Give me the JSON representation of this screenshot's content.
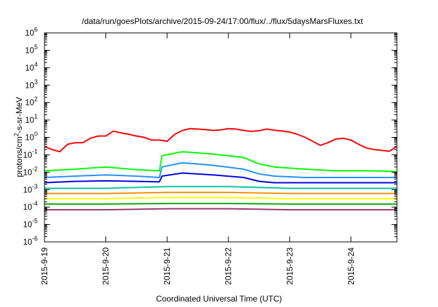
{
  "chart_data": {
    "type": "line",
    "title": "/data/run/goesPlots/archive/2015-09-24/17:00/flux/../flux/5daysMarsFluxes.txt",
    "xlabel": "Coordinated Universal Time (UTC)",
    "ylabel": {
      "pre": "protons/cm",
      "sup": "2",
      "post": "-s-sr-MeV"
    },
    "yscale": "log",
    "ylim": [
      1e-06,
      1000000.0
    ],
    "xlim": [
      "2015-09-19 00:00",
      "2015-09-24 18:00"
    ],
    "grid": false,
    "legend": "none",
    "y_ticks": [
      {
        "base": "10",
        "exp": "-6"
      },
      {
        "base": "10",
        "exp": "-5"
      },
      {
        "base": "10",
        "exp": "-4"
      },
      {
        "base": "10",
        "exp": "-3"
      },
      {
        "base": "10",
        "exp": "-2"
      },
      {
        "base": "10",
        "exp": "-1"
      },
      {
        "base": "10",
        "exp": "0"
      },
      {
        "base": "10",
        "exp": "1"
      },
      {
        "base": "10",
        "exp": "2"
      },
      {
        "base": "10",
        "exp": "3"
      },
      {
        "base": "10",
        "exp": "4"
      },
      {
        "base": "10",
        "exp": "5"
      },
      {
        "base": "10",
        "exp": "6"
      }
    ],
    "x_ticks": [
      "2015-9-19",
      "2015-9-20",
      "2015-9-21",
      "2015-9-22",
      "2015-9-23",
      "2015-9-24"
    ],
    "series": [
      {
        "color": "#ff0000",
        "x": [
          "2015-09-19 00:00",
          "2015-09-19 03:00",
          "2015-09-19 06:00",
          "2015-09-19 09:00",
          "2015-09-19 12:00",
          "2015-09-19 15:00",
          "2015-09-19 18:00",
          "2015-09-19 21:00",
          "2015-09-20 00:00",
          "2015-09-20 03:00",
          "2015-09-20 06:00",
          "2015-09-20 09:00",
          "2015-09-20 12:00",
          "2015-09-20 15:00",
          "2015-09-20 18:00",
          "2015-09-20 21:00",
          "2015-09-21 00:00",
          "2015-09-21 03:00",
          "2015-09-21 06:00",
          "2015-09-21 09:00",
          "2015-09-21 12:00",
          "2015-09-21 15:00",
          "2015-09-21 18:00",
          "2015-09-21 21:00",
          "2015-09-22 00:00",
          "2015-09-22 03:00",
          "2015-09-22 06:00",
          "2015-09-22 09:00",
          "2015-09-22 12:00",
          "2015-09-22 15:00",
          "2015-09-22 18:00",
          "2015-09-22 21:00",
          "2015-09-23 00:00",
          "2015-09-23 03:00",
          "2015-09-23 06:00",
          "2015-09-23 09:00",
          "2015-09-23 12:00",
          "2015-09-23 15:00",
          "2015-09-23 18:00",
          "2015-09-23 21:00",
          "2015-09-24 00:00",
          "2015-09-24 03:00",
          "2015-09-24 06:00",
          "2015-09-24 09:00",
          "2015-09-24 12:00",
          "2015-09-24 15:00",
          "2015-09-24 18:00"
        ],
        "y": [
          0.3,
          0.2,
          0.15,
          0.4,
          0.5,
          0.5,
          0.9,
          1.2,
          1.2,
          2.3,
          1.8,
          1.5,
          1.2,
          1.0,
          0.7,
          0.7,
          0.6,
          1.5,
          2.5,
          3.2,
          3.0,
          2.8,
          2.5,
          2.7,
          3.2,
          3.0,
          2.5,
          2.2,
          2.4,
          3.0,
          2.6,
          2.3,
          2.0,
          1.5,
          1.0,
          0.6,
          0.35,
          0.5,
          0.8,
          0.9,
          0.7,
          0.4,
          0.25,
          0.2,
          0.18,
          0.16,
          0.3
        ]
      },
      {
        "color": "#00ff00",
        "x": [
          "2015-09-19 00:00",
          "2015-09-19 12:00",
          "2015-09-20 00:00",
          "2015-09-20 12:00",
          "2015-09-20 21:00",
          "2015-09-20 22:00",
          "2015-09-21 06:00",
          "2015-09-21 18:00",
          "2015-09-22 06:00",
          "2015-09-22 12:00",
          "2015-09-22 18:00",
          "2015-09-23 06:00",
          "2015-09-23 18:00",
          "2015-09-24 06:00",
          "2015-09-24 18:00"
        ],
        "y": [
          0.012,
          0.015,
          0.02,
          0.014,
          0.012,
          0.09,
          0.15,
          0.11,
          0.07,
          0.03,
          0.02,
          0.015,
          0.012,
          0.012,
          0.011
        ]
      },
      {
        "color": "#1e90ff",
        "x": [
          "2015-09-19 00:00",
          "2015-09-19 12:00",
          "2015-09-20 00:00",
          "2015-09-20 12:00",
          "2015-09-20 21:00",
          "2015-09-20 22:00",
          "2015-09-21 06:00",
          "2015-09-21 18:00",
          "2015-09-22 06:00",
          "2015-09-22 12:00",
          "2015-09-22 18:00",
          "2015-09-23 06:00",
          "2015-09-23 18:00",
          "2015-09-24 06:00",
          "2015-09-24 18:00"
        ],
        "y": [
          0.005,
          0.006,
          0.007,
          0.006,
          0.005,
          0.02,
          0.035,
          0.025,
          0.015,
          0.008,
          0.006,
          0.005,
          0.005,
          0.005,
          0.005
        ]
      },
      {
        "color": "#0000dd",
        "x": [
          "2015-09-19 00:00",
          "2015-09-19 12:00",
          "2015-09-20 00:00",
          "2015-09-20 12:00",
          "2015-09-20 21:00",
          "2015-09-20 22:00",
          "2015-09-21 06:00",
          "2015-09-21 18:00",
          "2015-09-22 06:00",
          "2015-09-22 12:00",
          "2015-09-22 18:00",
          "2015-09-23 06:00",
          "2015-09-23 18:00",
          "2015-09-24 06:00",
          "2015-09-24 18:00"
        ],
        "y": [
          0.0025,
          0.003,
          0.0032,
          0.003,
          0.0028,
          0.006,
          0.009,
          0.007,
          0.005,
          0.003,
          0.0025,
          0.0025,
          0.0025,
          0.0025,
          0.0025
        ]
      },
      {
        "color": "#00c8a0",
        "x": [
          "2015-09-19 00:00",
          "2015-09-20 00:00",
          "2015-09-21 00:00",
          "2015-09-22 00:00",
          "2015-09-23 00:00",
          "2015-09-24 00:00",
          "2015-09-24 18:00"
        ],
        "y": [
          0.0012,
          0.0012,
          0.0015,
          0.0015,
          0.0012,
          0.0012,
          0.0012
        ]
      },
      {
        "color": "#ff8c00",
        "x": [
          "2015-09-19 00:00",
          "2015-09-20 00:00",
          "2015-09-21 00:00",
          "2015-09-22 00:00",
          "2015-09-23 00:00",
          "2015-09-24 00:00",
          "2015-09-24 18:00"
        ],
        "y": [
          0.0006,
          0.0006,
          0.0007,
          0.0007,
          0.0006,
          0.0006,
          0.0006
        ]
      },
      {
        "color": "#ffff00",
        "x": [
          "2015-09-19 00:00",
          "2015-09-20 00:00",
          "2015-09-21 00:00",
          "2015-09-22 00:00",
          "2015-09-23 00:00",
          "2015-09-24 00:00",
          "2015-09-24 18:00"
        ],
        "y": [
          0.0003,
          0.0003,
          0.00035,
          0.00035,
          0.0003,
          0.0003,
          0.0003
        ]
      },
      {
        "color": "#00aa00",
        "x": [
          "2015-09-19 00:00",
          "2015-09-20 00:00",
          "2015-09-21 00:00",
          "2015-09-22 00:00",
          "2015-09-23 00:00",
          "2015-09-24 00:00",
          "2015-09-24 18:00"
        ],
        "y": [
          0.00015,
          0.00015,
          0.00016,
          0.00016,
          0.00015,
          0.00015,
          0.00015
        ]
      },
      {
        "color": "#993366",
        "x": [
          "2015-09-19 00:00",
          "2015-09-20 00:00",
          "2015-09-21 00:00",
          "2015-09-22 00:00",
          "2015-09-23 00:00",
          "2015-09-24 00:00",
          "2015-09-24 18:00"
        ],
        "y": [
          7e-05,
          7e-05,
          8e-05,
          8e-05,
          7e-05,
          7e-05,
          7e-05
        ]
      }
    ]
  }
}
